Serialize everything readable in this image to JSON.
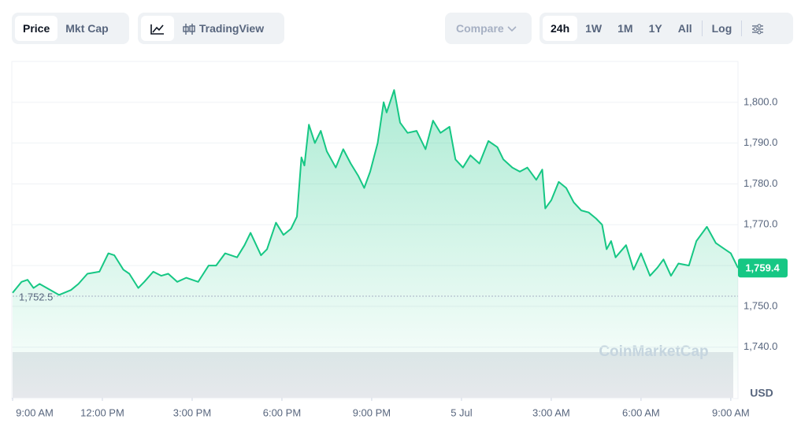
{
  "toolbar": {
    "price": "Price",
    "mkt_cap": "Mkt Cap",
    "tradingview": "TradingView",
    "compare": "Compare",
    "ranges": [
      "24h",
      "1W",
      "1M",
      "1Y",
      "All"
    ],
    "log": "Log"
  },
  "chart_data": {
    "type": "line",
    "color": "#16c784",
    "currency": "USD",
    "watermark": "CoinMarketCap",
    "x": [
      0,
      0.3,
      0.5,
      0.7,
      0.9,
      1.55,
      1.95,
      2.2,
      2.5,
      2.9,
      3.2,
      3.4,
      3.7,
      3.9,
      4.2,
      4.4,
      4.7,
      4.97,
      5.2,
      5.5,
      5.8,
      6.2,
      6.55,
      6.8,
      7.1,
      7.5,
      7.75,
      7.95,
      8.3,
      8.5,
      8.8,
      9.05,
      9.3,
      9.5,
      9.65,
      9.75,
      9.9,
      10.1,
      10.3,
      10.5,
      10.8,
      11.05,
      11.3,
      11.55,
      11.75,
      11.95,
      12.2,
      12.4,
      12.5,
      12.75,
      12.95,
      13.2,
      13.5,
      13.8,
      14.05,
      14.3,
      14.6,
      14.8,
      15.05,
      15.3,
      15.6,
      15.9,
      16.2,
      16.4,
      16.7,
      16.95,
      17.2,
      17.5,
      17.7,
      17.8,
      18,
      18.25,
      18.5,
      18.75,
      19,
      19.25,
      19.5,
      19.7,
      19.85,
      20,
      20.15,
      20.5,
      20.75,
      21,
      21.3,
      21.55,
      21.75,
      22,
      22.25,
      22.6,
      22.85,
      23.2,
      23.5,
      23.8,
      24,
      24.24
    ],
    "values": [
      1753.3,
      1756.0,
      1756.5,
      1754.5,
      1755.5,
      1752.8,
      1754,
      1755.5,
      1758,
      1758.5,
      1763,
      1762.5,
      1759,
      1758,
      1754.5,
      1756,
      1758.5,
      1757.5,
      1758,
      1756,
      1757,
      1756,
      1760,
      1760,
      1763,
      1762,
      1765,
      1768,
      1762.5,
      1764,
      1770.5,
      1767.5,
      1769,
      1772,
      1786.5,
      1784.5,
      1794.5,
      1790,
      1793,
      1788,
      1784,
      1788.5,
      1785,
      1782,
      1779,
      1783,
      1790,
      1800,
      1797.5,
      1803,
      1795,
      1792.5,
      1793,
      1788.5,
      1795.5,
      1792.5,
      1794,
      1786,
      1784,
      1787,
      1785,
      1790.5,
      1789,
      1786,
      1784,
      1783,
      1784,
      1781,
      1783.5,
      1774,
      1776,
      1780.5,
      1779,
      1775.5,
      1773.5,
      1773,
      1771.5,
      1770,
      1764,
      1766,
      1762,
      1765,
      1759,
      1763,
      1757.5,
      1759.5,
      1761.5,
      1757.5,
      1760.5,
      1760,
      1766,
      1769.5,
      1765.5,
      1764,
      1763,
      1759.4
    ],
    "xlim": [
      0,
      24.24
    ],
    "xticks": [
      {
        "value": 0,
        "label": "9:00 AM"
      },
      {
        "value": 3,
        "label": "12:00 PM"
      },
      {
        "value": 6,
        "label": "3:00 PM"
      },
      {
        "value": 9,
        "label": "6:00 PM"
      },
      {
        "value": 12,
        "label": "9:00 PM"
      },
      {
        "value": 15,
        "label": "5 Jul"
      },
      {
        "value": 18,
        "label": "3:00 AM"
      },
      {
        "value": 21,
        "label": "6:00 AM"
      },
      {
        "value": 24,
        "label": "9:00 AM"
      }
    ],
    "ylim": [
      1727.6,
      1810.0
    ],
    "yticks": [
      {
        "value": 1740,
        "label": "1,740.0"
      },
      {
        "value": 1750,
        "label": "1,750.0"
      },
      {
        "value": 1760,
        "label": "1,760.0"
      },
      {
        "value": 1770,
        "label": "1,770.0"
      },
      {
        "value": 1780,
        "label": "1,780.0"
      },
      {
        "value": 1790,
        "label": "1,790.0"
      },
      {
        "value": 1800,
        "label": "1,800.0"
      }
    ],
    "grid": true,
    "annotations": [
      {
        "value": 1759.4,
        "label": "1,759.4"
      },
      {
        "value": 1752.5,
        "label": "1,752.5"
      }
    ]
  }
}
